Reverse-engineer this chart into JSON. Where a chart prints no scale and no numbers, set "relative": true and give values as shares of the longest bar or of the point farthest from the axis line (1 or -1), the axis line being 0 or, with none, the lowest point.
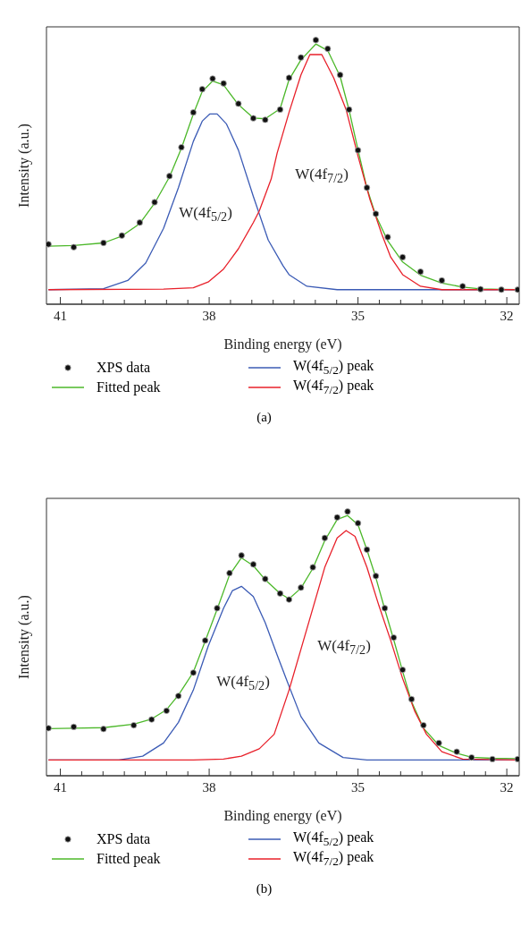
{
  "chart_data": [
    {
      "type": "line",
      "xlabel": "Binding energy (eV)",
      "ylabel": "Intensity (a.u.)",
      "relative": true,
      "grid": false,
      "legend": "bottom",
      "xlim": [
        41.28,
        31.75
      ],
      "xticks": [
        41,
        {
          "value": 40.57,
          "label": null
        },
        {
          "value": 40.14,
          "label": null
        },
        {
          "value": 39.71,
          "label": null
        },
        {
          "value": 39.29,
          "label": null
        },
        {
          "value": 38.86,
          "label": null
        },
        {
          "value": 38.43,
          "label": null
        },
        38,
        {
          "value": 37.57,
          "label": null
        },
        {
          "value": 37.14,
          "label": null
        },
        {
          "value": 36.71,
          "label": null
        },
        {
          "value": 36.29,
          "label": null
        },
        {
          "value": 35.86,
          "label": null
        },
        {
          "value": 35.43,
          "label": null
        },
        35,
        {
          "value": 34.57,
          "label": null
        },
        {
          "value": 34.14,
          "label": null
        },
        {
          "value": 33.71,
          "label": null
        },
        {
          "value": 33.29,
          "label": null
        },
        {
          "value": 32.86,
          "label": null
        },
        {
          "value": 32.43,
          "label": null
        },
        32
      ],
      "series": [
        {
          "name": "XPS data",
          "type": "scatter",
          "marker": "circle",
          "color": "#111111",
          "x": [
            41.24,
            40.73,
            40.13,
            39.76,
            39.4,
            39.1,
            38.8,
            38.56,
            38.32,
            38.14,
            37.93,
            37.71,
            37.41,
            37.11,
            36.87,
            36.57,
            36.39,
            36.15,
            35.85,
            35.61,
            35.36,
            35.18,
            35.0,
            34.82,
            34.64,
            34.4,
            34.1,
            33.74,
            33.31,
            32.89,
            32.53,
            32.11,
            31.78
          ],
          "values": [
            0.227,
            0.216,
            0.232,
            0.26,
            0.309,
            0.386,
            0.485,
            0.594,
            0.726,
            0.814,
            0.854,
            0.836,
            0.759,
            0.704,
            0.698,
            0.737,
            0.857,
            0.934,
            1.0,
            0.967,
            0.868,
            0.737,
            0.583,
            0.441,
            0.342,
            0.254,
            0.178,
            0.123,
            0.09,
            0.068,
            0.057,
            0.055,
            0.055
          ]
        },
        {
          "name": "Fitted peak",
          "type": "line",
          "color": "#4cb82a",
          "x": [
            41.24,
            40.73,
            40.13,
            39.76,
            39.4,
            39.1,
            38.8,
            38.56,
            38.32,
            38.14,
            37.93,
            37.71,
            37.41,
            37.11,
            36.87,
            36.57,
            36.39,
            36.15,
            35.85,
            35.61,
            35.36,
            35.18,
            35.0,
            34.82,
            34.64,
            34.4,
            34.1,
            33.74,
            33.31,
            32.89,
            32.53,
            32.11,
            31.78
          ],
          "values": [
            0.22,
            0.222,
            0.232,
            0.258,
            0.305,
            0.382,
            0.482,
            0.59,
            0.72,
            0.805,
            0.845,
            0.83,
            0.755,
            0.705,
            0.702,
            0.74,
            0.85,
            0.925,
            0.985,
            0.96,
            0.862,
            0.735,
            0.585,
            0.44,
            0.335,
            0.24,
            0.16,
            0.11,
            0.08,
            0.065,
            0.058,
            0.056,
            0.055
          ]
        },
        {
          "name": "W(4f$_{5/2}$) peak",
          "type": "line",
          "color": "#3b5bb5",
          "x": [
            41.24,
            40.13,
            39.64,
            39.28,
            38.92,
            38.62,
            38.32,
            38.14,
            37.99,
            37.84,
            37.65,
            37.41,
            37.11,
            36.81,
            36.51,
            36.39,
            36.03,
            35.42,
            31.78
          ],
          "values": [
            0.055,
            0.059,
            0.09,
            0.156,
            0.287,
            0.441,
            0.616,
            0.693,
            0.72,
            0.72,
            0.682,
            0.583,
            0.408,
            0.243,
            0.145,
            0.112,
            0.068,
            0.055,
            0.055
          ]
        },
        {
          "name": "W(4f$_{7/2}$) peak",
          "type": "line",
          "color": "#e8202a",
          "x": [
            41.24,
            38.92,
            38.32,
            38.02,
            37.71,
            37.41,
            37.11,
            36.99,
            36.75,
            36.63,
            36.39,
            36.15,
            35.97,
            35.73,
            35.49,
            35.24,
            35.0,
            34.76,
            34.52,
            34.34,
            34.1,
            33.74,
            33.31,
            31.78
          ],
          "values": [
            0.055,
            0.057,
            0.062,
            0.084,
            0.133,
            0.21,
            0.309,
            0.353,
            0.474,
            0.572,
            0.726,
            0.868,
            0.945,
            0.945,
            0.857,
            0.737,
            0.561,
            0.397,
            0.265,
            0.178,
            0.112,
            0.068,
            0.055,
            0.055
          ]
        }
      ],
      "annotations": [
        "W(4f$_{5/2}$)",
        "W(4f$_{7/2}$)",
        "(a)"
      ]
    },
    {
      "type": "line",
      "xlabel": "Binding energy (eV)",
      "ylabel": "Intensity (a.u.)",
      "relative": true,
      "grid": false,
      "legend": "bottom",
      "xlim": [
        41.28,
        31.75
      ],
      "xticks": [
        41,
        {
          "value": 40.57,
          "label": null
        },
        {
          "value": 40.14,
          "label": null
        },
        {
          "value": 39.71,
          "label": null
        },
        {
          "value": 39.29,
          "label": null
        },
        {
          "value": 38.86,
          "label": null
        },
        {
          "value": 38.43,
          "label": null
        },
        38,
        {
          "value": 37.57,
          "label": null
        },
        {
          "value": 37.14,
          "label": null
        },
        {
          "value": 36.71,
          "label": null
        },
        {
          "value": 36.29,
          "label": null
        },
        {
          "value": 35.86,
          "label": null
        },
        {
          "value": 35.43,
          "label": null
        },
        35,
        {
          "value": 34.57,
          "label": null
        },
        {
          "value": 34.14,
          "label": null
        },
        {
          "value": 33.71,
          "label": null
        },
        {
          "value": 33.29,
          "label": null
        },
        {
          "value": 32.86,
          "label": null
        },
        {
          "value": 32.43,
          "label": null
        },
        32
      ],
      "series": [
        {
          "name": "XPS data",
          "type": "scatter",
          "marker": "circle",
          "color": "#111111",
          "x": [
            41.24,
            40.73,
            40.13,
            39.52,
            39.16,
            38.86,
            38.62,
            38.32,
            38.08,
            37.84,
            37.59,
            37.35,
            37.11,
            36.87,
            36.57,
            36.39,
            36.15,
            35.91,
            35.67,
            35.42,
            35.21,
            35.0,
            34.82,
            34.64,
            34.46,
            34.28,
            34.1,
            33.92,
            33.68,
            33.37,
            33.01,
            32.71,
            32.29,
            31.78
          ],
          "values": [
            0.18,
            0.185,
            0.177,
            0.191,
            0.213,
            0.246,
            0.302,
            0.39,
            0.512,
            0.634,
            0.767,
            0.834,
            0.8,
            0.745,
            0.69,
            0.667,
            0.712,
            0.789,
            0.9,
            0.978,
            1.0,
            0.956,
            0.856,
            0.756,
            0.634,
            0.523,
            0.401,
            0.29,
            0.191,
            0.124,
            0.091,
            0.069,
            0.063,
            0.063
          ]
        },
        {
          "name": "Fitted peak",
          "type": "line",
          "color": "#4cb82a",
          "x": [
            41.24,
            40.73,
            40.13,
            39.52,
            39.16,
            38.86,
            38.62,
            38.32,
            38.08,
            37.84,
            37.59,
            37.35,
            37.11,
            36.87,
            36.57,
            36.39,
            36.15,
            35.91,
            35.67,
            35.42,
            35.21,
            35.0,
            34.82,
            34.64,
            34.46,
            34.28,
            34.1,
            33.92,
            33.68,
            33.37,
            33.01,
            32.71,
            32.29,
            31.78
          ],
          "values": [
            0.178,
            0.18,
            0.182,
            0.195,
            0.215,
            0.25,
            0.305,
            0.392,
            0.51,
            0.63,
            0.76,
            0.825,
            0.795,
            0.742,
            0.69,
            0.67,
            0.71,
            0.785,
            0.89,
            0.97,
            0.985,
            0.95,
            0.855,
            0.75,
            0.63,
            0.515,
            0.395,
            0.28,
            0.18,
            0.115,
            0.085,
            0.07,
            0.066,
            0.065
          ]
        },
        {
          "name": "W(4f$_{5/2}$) peak",
          "type": "line",
          "color": "#3b5bb5",
          "x": [
            41.24,
            39.82,
            39.34,
            38.92,
            38.62,
            38.32,
            38.02,
            37.71,
            37.53,
            37.35,
            37.11,
            36.87,
            36.63,
            36.45,
            36.15,
            35.79,
            35.3,
            34.82,
            31.78
          ],
          "values": [
            0.06,
            0.06,
            0.074,
            0.124,
            0.202,
            0.324,
            0.49,
            0.634,
            0.701,
            0.717,
            0.678,
            0.579,
            0.457,
            0.368,
            0.224,
            0.124,
            0.069,
            0.06,
            0.06
          ]
        },
        {
          "name": "W(4f$_{7/2}$) peak",
          "type": "line",
          "color": "#e8202a",
          "x": [
            41.24,
            38.32,
            37.71,
            37.35,
            36.99,
            36.69,
            36.39,
            36.15,
            35.91,
            35.67,
            35.42,
            35.24,
            35.06,
            34.82,
            34.58,
            34.34,
            34.1,
            33.86,
            33.62,
            33.31,
            32.89,
            31.78
          ],
          "values": [
            0.06,
            0.06,
            0.063,
            0.074,
            0.102,
            0.157,
            0.324,
            0.479,
            0.634,
            0.789,
            0.9,
            0.928,
            0.906,
            0.789,
            0.645,
            0.512,
            0.368,
            0.246,
            0.157,
            0.091,
            0.063,
            0.06
          ]
        }
      ],
      "annotations": [
        "W(4f$_{5/2}$)",
        "W(4f$_{7/2}$)",
        "(b)"
      ]
    }
  ]
}
